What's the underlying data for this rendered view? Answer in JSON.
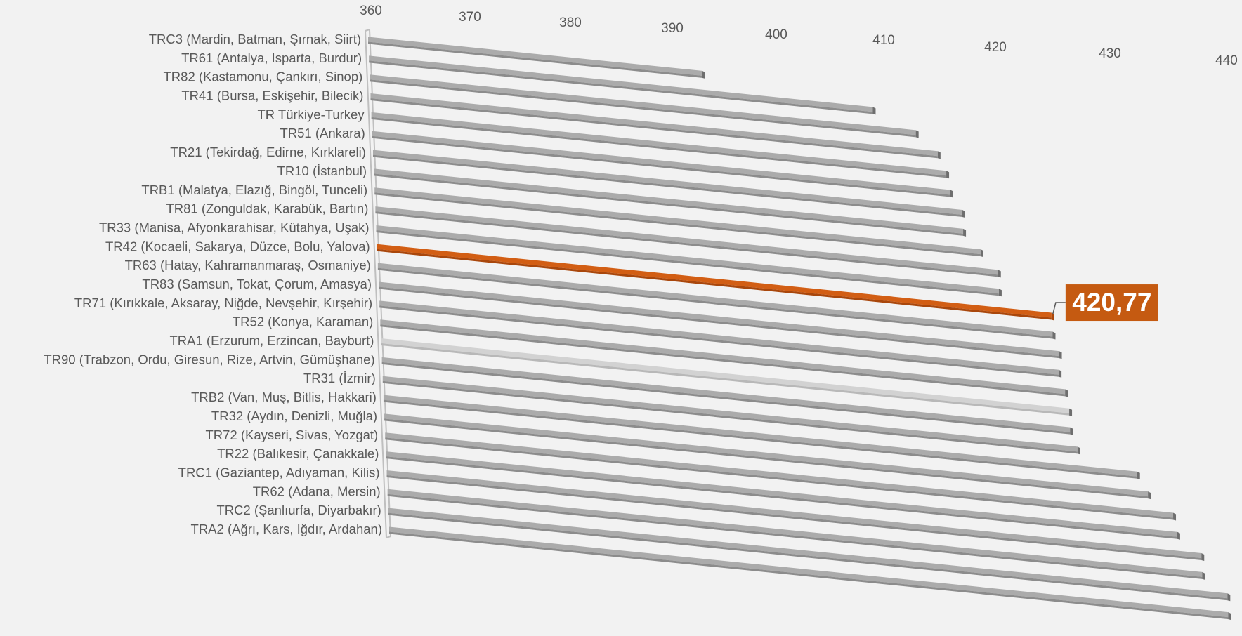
{
  "chart_data": {
    "type": "bar",
    "orientation": "horizontal",
    "style": "3d-perspective",
    "categories": [
      "TRC3 (Mardin, Batman, Şırnak, Siirt)",
      "TR61 (Antalya, Isparta, Burdur)",
      "TR82 (Kastamonu, Çankırı, Sinop)",
      "TR41 (Bursa, Eskişehir, Bilecik)",
      "TR Türkiye-Turkey",
      "TR51 (Ankara)",
      "TR21 (Tekirdağ, Edirne, Kırklareli)",
      "TR10 (İstanbul)",
      "TRB1 (Malatya, Elazığ, Bingöl, Tunceli)",
      "TR81 (Zonguldak, Karabük, Bartın)",
      "TR33 (Manisa, Afyonkarahisar, Kütahya, Uşak)",
      "TR42 (Kocaeli, Sakarya, Düzce, Bolu, Yalova)",
      "TR63 (Hatay, Kahramanmaraş, Osmaniye)",
      "TR83 (Samsun, Tokat, Çorum, Amasya)",
      "TR71 (Kırıkkale, Aksaray, Niğde, Nevşehir, Kırşehir)",
      "TR52 (Konya, Karaman)",
      "TRA1 (Erzurum, Erzincan, Bayburt)",
      "TR90 (Trabzon, Ordu, Giresun, Rize, Artvin, Gümüşhane)",
      "TR31 (İzmir)",
      "TRB2 (Van, Muş, Bitlis, Hakkari)",
      "TR32 (Aydın, Denizli, Muğla)",
      "TR72 (Kayseri, Sivas, Yozgat)",
      "TR22 (Balıkesir, Çanakkale)",
      "TRC1 (Gaziantep, Adıyaman, Kilis)",
      "TR62 (Adana, Mersin)",
      "TRC2 (Şanlıurfa, Diyarbakır)",
      "TRA2 (Ağrı, Kars, Iğdır, Ardahan)"
    ],
    "values": [
      390.1,
      405.4,
      409.2,
      411.1,
      411.8,
      412.1,
      413.1,
      413.1,
      414.6,
      416.1,
      416.1,
      420.77,
      420.8,
      421.3,
      421.2,
      421.7,
      422.0,
      422.0,
      422.6,
      427.9,
      428.8,
      431.0,
      431.3,
      433.4,
      433.4,
      435.6,
      435.6
    ],
    "highlight_index": 11,
    "lighter_index": 16,
    "highlight_label": "420,77",
    "xlim": [
      360,
      440
    ],
    "xticks": [
      "360",
      "370",
      "380",
      "390",
      "400",
      "410",
      "420",
      "430",
      "440"
    ],
    "title": "",
    "xlabel": "",
    "ylabel": "",
    "grid": false,
    "legend": "none",
    "colors": {
      "bar_top": "#ababab",
      "bar_front": "#8c8c8c",
      "bar_end": "#6e6e6e",
      "bar_light_top": "#d2d2d2",
      "bar_light_front": "#b8b8b8",
      "highlight_top": "#d25e14",
      "highlight_front": "#a9470c",
      "callout_bg": "#c55a11",
      "axis": "#bfbfbf",
      "label_text": "#595959"
    }
  }
}
